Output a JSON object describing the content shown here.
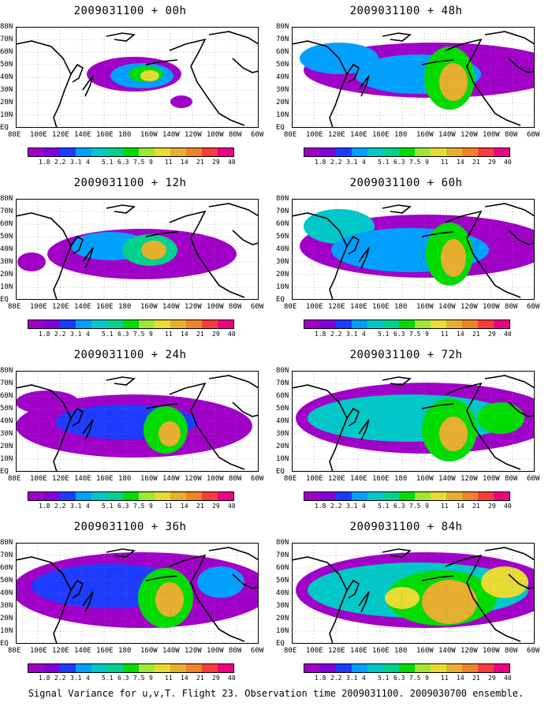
{
  "caption": "Signal Variance for u,v,T. Flight 23. Observation time 2009031100. 2009030700 ensemble.",
  "lat_labels": [
    "80N",
    "70N",
    "60N",
    "50N",
    "40N",
    "30N",
    "20N",
    "10N",
    "EQ"
  ],
  "lon_labels": [
    "80E",
    "100E",
    "120E",
    "140E",
    "160E",
    "180",
    "160W",
    "140W",
    "120W",
    "100W",
    "80W",
    "60W"
  ],
  "colorbar_labels": [
    "1.8",
    "2.2",
    "3.1",
    "4",
    "5.1",
    "6.3",
    "7.5",
    "9",
    "11",
    "14",
    "21",
    "29",
    "40"
  ],
  "colorbar_colors": [
    "#a000c8",
    "#8200dc",
    "#1e3cff",
    "#00a0ff",
    "#00c8c8",
    "#00d28c",
    "#00dc00",
    "#a0e632",
    "#e6dc32",
    "#e6af2d",
    "#f08228",
    "#fa3c3c",
    "#f00082"
  ],
  "panels": [
    {
      "title": "2009031100 + 00h"
    },
    {
      "title": "2009031100 + 48h"
    },
    {
      "title": "2009031100 + 12h"
    },
    {
      "title": "2009031100 + 60h"
    },
    {
      "title": "2009031100 + 24h"
    },
    {
      "title": "2009031100 + 72h"
    },
    {
      "title": "2009031100 + 36h"
    },
    {
      "title": "2009031100 + 84h"
    }
  ]
}
